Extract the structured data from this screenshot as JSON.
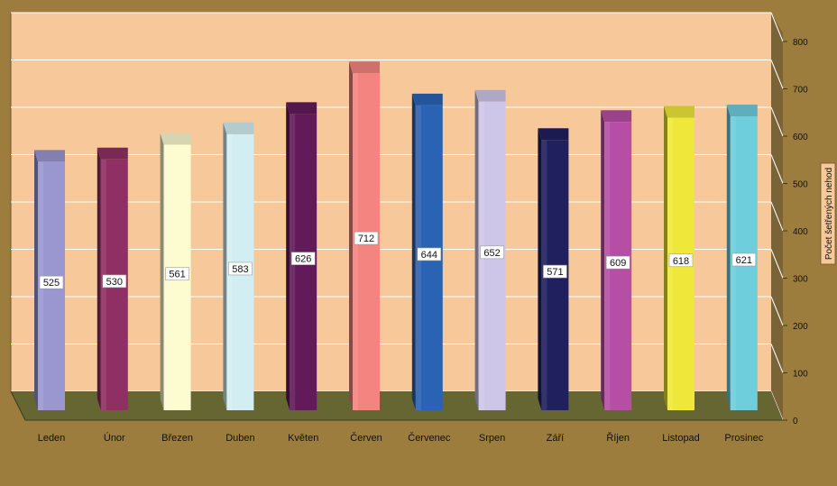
{
  "chart_data": {
    "type": "bar",
    "style": "3d-columns",
    "categories": [
      "Leden",
      "Únor",
      "Březen",
      "Duben",
      "Květen",
      "Červen",
      "Červenec",
      "Srpen",
      "Září",
      "Říjen",
      "Listopad",
      "Prosinec"
    ],
    "values": [
      525,
      530,
      561,
      583,
      626,
      712,
      644,
      652,
      571,
      609,
      618,
      621
    ],
    "data_labels": [
      "525",
      "530",
      "561",
      "583",
      "626",
      "712",
      "644",
      "652",
      "571",
      "609",
      "618",
      "621"
    ],
    "colors": [
      "#9a96d0",
      "#8f2f63",
      "#fdfbd0",
      "#d2eef2",
      "#621a5a",
      "#f38480",
      "#2a63b4",
      "#cec6e8",
      "#20205f",
      "#b64ea6",
      "#efe83a",
      "#6ecedc"
    ],
    "ylabel": "Počet šetřených nehod",
    "yaxis_position": "right",
    "ylim": [
      0,
      800
    ],
    "yticks": [
      "0",
      "100",
      "200",
      "300",
      "400",
      "500",
      "600",
      "700",
      "800"
    ],
    "grid": true,
    "legend": "none",
    "plot_background": "#f7c99a",
    "floor_color": "#666633",
    "page_background": "#9c7d3e"
  }
}
